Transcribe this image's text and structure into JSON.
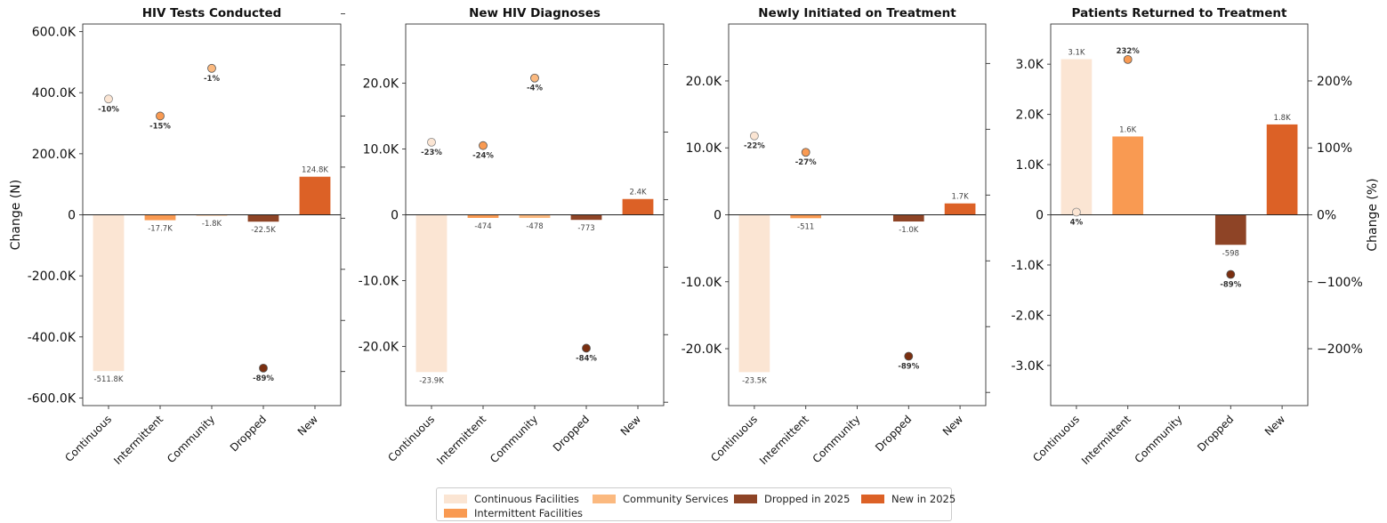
{
  "colors": {
    "Continuous": "#fbe5d3",
    "Intermittent": "#f99a52",
    "Community": "#fbb97f",
    "Dropped": "#8e4426",
    "New": "#dc6126",
    "Dropped_dot": "#7a2f10"
  },
  "chart_data": [
    {
      "type": "bar",
      "title": "HIV Tests Conducted",
      "ylabel": "Change (N)",
      "ylabel_right": "",
      "categories": [
        "Continuous",
        "Intermittent",
        "Community",
        "Dropped",
        "New"
      ],
      "values": [
        -511800,
        -17700,
        -1800,
        -22500,
        124800
      ],
      "value_labels": [
        "-511.8K",
        "-17.7K",
        "-1.8K",
        "-22.5K",
        "124.8K"
      ],
      "pct_values": [
        -10,
        -15,
        -1,
        -89,
        null
      ],
      "pct_labels": [
        "-10%",
        "-15%",
        "-1%",
        "-89%",
        ""
      ],
      "ylim": [
        -625000,
        625000
      ],
      "yticks": [
        -600000,
        -400000,
        -200000,
        0,
        200000,
        400000,
        600000
      ],
      "ytick_labels": [
        "-600.0K",
        "-400.0K",
        "-200.0K",
        "0",
        "200.0K",
        "400.0K",
        "600.0K"
      ],
      "pct_ylim": [
        -100,
        12
      ],
      "right_ticks": [
        -90,
        -75,
        -60,
        -45,
        -30,
        -15,
        0,
        15,
        30
      ],
      "right_tick_labels": [],
      "grid": false
    },
    {
      "type": "bar",
      "title": "New HIV Diagnoses",
      "ylabel": "",
      "ylabel_right": "",
      "categories": [
        "Continuous",
        "Intermittent",
        "Community",
        "Dropped",
        "New"
      ],
      "values": [
        -23900,
        -474,
        -478,
        -773,
        2400
      ],
      "value_labels": [
        "-23.9K",
        "-474",
        "-478",
        "-773",
        "2.4K"
      ],
      "pct_values": [
        -23,
        -24,
        -4,
        -84,
        null
      ],
      "pct_labels": [
        "-23%",
        "-24%",
        "-4%",
        "-84%",
        ""
      ],
      "ylim": [
        -29000,
        29000
      ],
      "yticks": [
        -20000,
        -10000,
        0,
        10000,
        20000
      ],
      "ytick_labels": [
        "-20.0K",
        "-10.0K",
        "0",
        "10.0K",
        "20.0K"
      ],
      "pct_ylim": [
        -101,
        12
      ],
      "right_ticks": [
        -100,
        -80,
        -60,
        -40,
        -20,
        0,
        20,
        40,
        60,
        80,
        100
      ],
      "right_tick_labels": [],
      "grid": false
    },
    {
      "type": "bar",
      "title": "Newly Initiated on Treatment",
      "ylabel": "",
      "ylabel_right": "",
      "categories": [
        "Continuous",
        "Intermittent",
        "Community",
        "Dropped",
        "New"
      ],
      "values": [
        -23500,
        -511,
        0,
        -1000,
        1700
      ],
      "value_labels": [
        "-23.5K",
        "-511",
        "",
        "-1.0K",
        "1.7K"
      ],
      "pct_values": [
        -22,
        -27,
        null,
        -89,
        null
      ],
      "pct_labels": [
        "-22%",
        "-27%",
        "",
        "-89%",
        ""
      ],
      "ylim": [
        -28500,
        28500
      ],
      "yticks": [
        -20000,
        -10000,
        0,
        10000,
        20000
      ],
      "ytick_labels": [
        "-20.0K",
        "-10.0K",
        "0",
        "10.0K",
        "20.0K"
      ],
      "pct_ylim": [
        -104,
        12
      ],
      "right_ticks": [
        -100,
        -80,
        -60,
        -40,
        -20,
        0,
        20,
        40,
        60,
        80,
        100
      ],
      "right_tick_labels": [],
      "grid": false
    },
    {
      "type": "bar",
      "title": "Patients Returned to Treatment",
      "ylabel": "",
      "ylabel_right": "Change (%)",
      "categories": [
        "Continuous",
        "Intermittent",
        "Community",
        "Dropped",
        "New"
      ],
      "values": [
        3100,
        1560,
        0,
        -598,
        1800
      ],
      "value_labels": [
        "3.1K",
        "1.6K",
        "",
        "-598",
        "1.8K"
      ],
      "pct_values": [
        4,
        232,
        null,
        -89,
        null
      ],
      "pct_labels": [
        "4%",
        "232%",
        "",
        "-89%",
        ""
      ],
      "ylim": [
        -3800,
        3800
      ],
      "yticks": [
        -3000,
        -2000,
        -1000,
        0,
        1000,
        2000,
        3000
      ],
      "ytick_labels": [
        "-3.0K",
        "-2.0K",
        "-1.0K",
        "0",
        "1.0K",
        "2.0K",
        "3.0K"
      ],
      "pct_ylim": [
        -285,
        285
      ],
      "right_ticks": [
        -200,
        -100,
        0,
        100,
        200
      ],
      "right_tick_labels": [
        "−200%",
        "−100%",
        "0%",
        "100%",
        "200%"
      ],
      "grid": false
    }
  ],
  "legend": {
    "placement": "bottom-center",
    "items": [
      {
        "label": "Continuous Facilities",
        "color": "#fbe5d3"
      },
      {
        "label": "Intermittent Facilities",
        "color": "#f99a52"
      },
      {
        "label": "Community Services",
        "color": "#fbb97f"
      },
      {
        "label": "Dropped in 2025",
        "color": "#8e4426"
      },
      {
        "label": "New in 2025",
        "color": "#dc6126"
      }
    ]
  }
}
